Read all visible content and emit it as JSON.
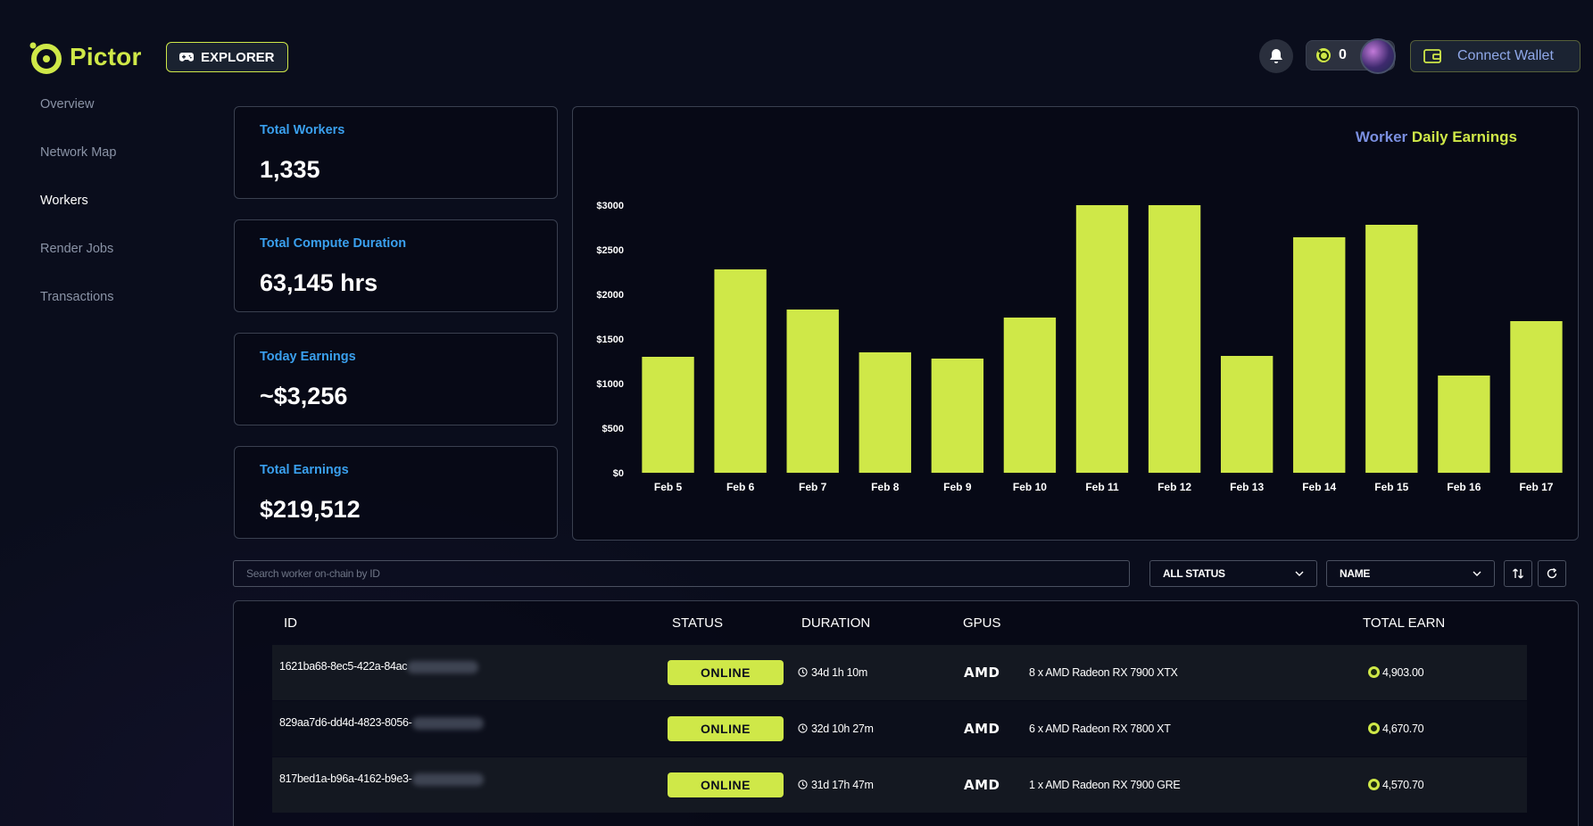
{
  "brand": {
    "name": "Pictor",
    "badge": "EXPLORER"
  },
  "header": {
    "points": "0",
    "connect_wallet": "Connect Wallet"
  },
  "sidebar": {
    "items": [
      {
        "label": "Overview",
        "active": false
      },
      {
        "label": "Network Map",
        "active": false
      },
      {
        "label": "Workers",
        "active": true
      },
      {
        "label": "Render Jobs",
        "active": false
      },
      {
        "label": "Transactions",
        "active": false
      }
    ]
  },
  "stats": [
    {
      "label": "Total Workers",
      "value": "1,335"
    },
    {
      "label": "Total Compute Duration",
      "value": "63,145 hrs"
    },
    {
      "label": "Today Earnings",
      "value": "~$3,256"
    },
    {
      "label": "Total Earnings",
      "value": "$219,512"
    }
  ],
  "chart_title": {
    "part1": "Worker",
    "part2": "Daily Earnings"
  },
  "chart_data": {
    "type": "bar",
    "title": "Worker Daily Earnings",
    "categories": [
      "Feb 5",
      "Feb 6",
      "Feb 7",
      "Feb 8",
      "Feb 9",
      "Feb 10",
      "Feb 11",
      "Feb 12",
      "Feb 13",
      "Feb 14",
      "Feb 15",
      "Feb 16",
      "Feb 17"
    ],
    "values": [
      1300,
      2280,
      1830,
      1350,
      1280,
      1740,
      3000,
      3000,
      1310,
      2640,
      2780,
      1090,
      1700
    ],
    "yticks": [
      "$0",
      "$500",
      "$1000",
      "$1500",
      "$2000",
      "$2500",
      "$3000"
    ],
    "ylim": [
      0,
      3000
    ],
    "color": "#cfe848",
    "grid": false,
    "legend": "none"
  },
  "toolbar": {
    "search_placeholder": "Search worker on-chain by ID",
    "status_filter": "ALL STATUS",
    "sort_field": "NAME"
  },
  "table": {
    "headers": {
      "id": "ID",
      "status": "STATUS",
      "duration": "DURATION",
      "gpus": "GPUS",
      "earn": "TOTAL EARN"
    },
    "rows": [
      {
        "id": "1621ba68-8ec5-422a-84ac",
        "status": "ONLINE",
        "duration": "34d 1h 10m",
        "gpu_brand": "AMD",
        "gpus": "8 x AMD Radeon RX 7900 XTX",
        "earn": "4,903.00"
      },
      {
        "id": "829aa7d6-dd4d-4823-8056-",
        "status": "ONLINE",
        "duration": "32d 10h 27m",
        "gpu_brand": "AMD",
        "gpus": "6 x AMD Radeon RX 7800 XT",
        "earn": "4,670.70"
      },
      {
        "id": "817bed1a-b96a-4162-b9e3-",
        "status": "ONLINE",
        "duration": "31d 17h 47m",
        "gpu_brand": "AMD",
        "gpus": "1 x AMD Radeon RX 7900 GRE",
        "earn": "4,570.70"
      }
    ]
  },
  "colors": {
    "accent": "#cfe848",
    "label_blue": "#3aa0ee",
    "background": "#0a0d1c"
  }
}
